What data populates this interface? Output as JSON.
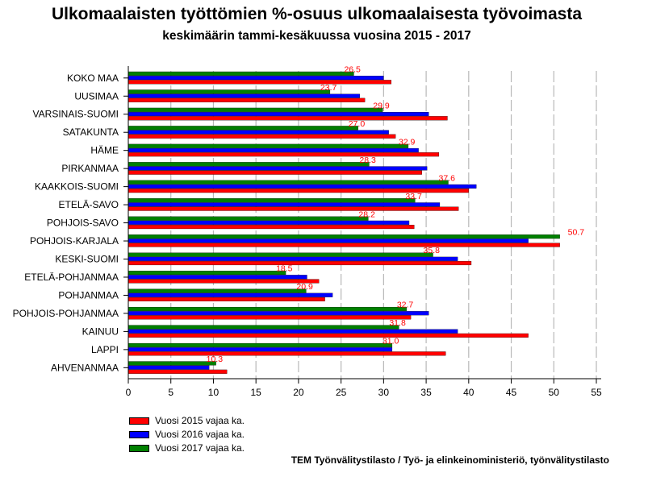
{
  "title": "Ulkomaalaisten työttömien %-osuus ulkomaalaisesta työvoimasta",
  "subtitle": "keskimäärin tammi-kesäkuussa vuosina 2015 - 2017",
  "source": "TEM Työnvälitystilasto / Työ- ja elinkeinoministeriö, työnvälitystilasto",
  "chart_data": {
    "type": "bar",
    "orientation": "horizontal",
    "categories": [
      "KOKO MAA",
      "UUSIMAA",
      "VARSINAIS-SUOMI",
      "SATAKUNTA",
      "HÄME",
      "PIRKANMAA",
      "KAAKKOIS-SUOMI",
      "ETELÄ-SAVO",
      "POHJOIS-SAVO",
      "POHJOIS-KARJALA",
      "KESKI-SUOMI",
      "ETELÄ-POHJANMAA",
      "POHJANMAA",
      "POHJOIS-POHJANMAA",
      "KAINUU",
      "LAPPI",
      "AHVENANMAA"
    ],
    "series": [
      {
        "name": "Vuosi 2017 vajaa ka.",
        "color": "#008000",
        "values": [
          26.5,
          23.7,
          29.9,
          27.0,
          32.9,
          28.3,
          37.6,
          33.7,
          28.2,
          50.7,
          35.8,
          18.5,
          20.9,
          32.7,
          31.8,
          31.0,
          10.3
        ],
        "labeled": true
      },
      {
        "name": "Vuosi 2016 vajaa ka.",
        "color": "#0000ff",
        "values": [
          30.0,
          27.2,
          35.3,
          30.6,
          34.1,
          35.1,
          40.9,
          36.6,
          33.0,
          47.0,
          38.7,
          21.0,
          24.0,
          35.3,
          38.7,
          31.0,
          9.5
        ]
      },
      {
        "name": "Vuosi 2015 vajaa ka.",
        "color": "#ff0000",
        "values": [
          30.9,
          27.8,
          37.5,
          31.4,
          36.5,
          34.5,
          40.0,
          38.8,
          33.6,
          50.7,
          40.3,
          22.4,
          23.1,
          33.2,
          47.0,
          37.3,
          11.6
        ]
      }
    ],
    "legend_order": [
      "Vuosi 2015 vajaa ka.",
      "Vuosi 2016 vajaa ka.",
      "Vuosi 2017 vajaa ka."
    ],
    "legend_colors": [
      "#ff0000",
      "#0000ff",
      "#008000"
    ],
    "label_color": "#ff0000",
    "xlim": [
      0,
      55
    ],
    "xticks": [
      0,
      5,
      10,
      15,
      20,
      25,
      30,
      35,
      40,
      45,
      50,
      55
    ],
    "grid": "vertical dashed",
    "legend_position": "bottom-left"
  }
}
